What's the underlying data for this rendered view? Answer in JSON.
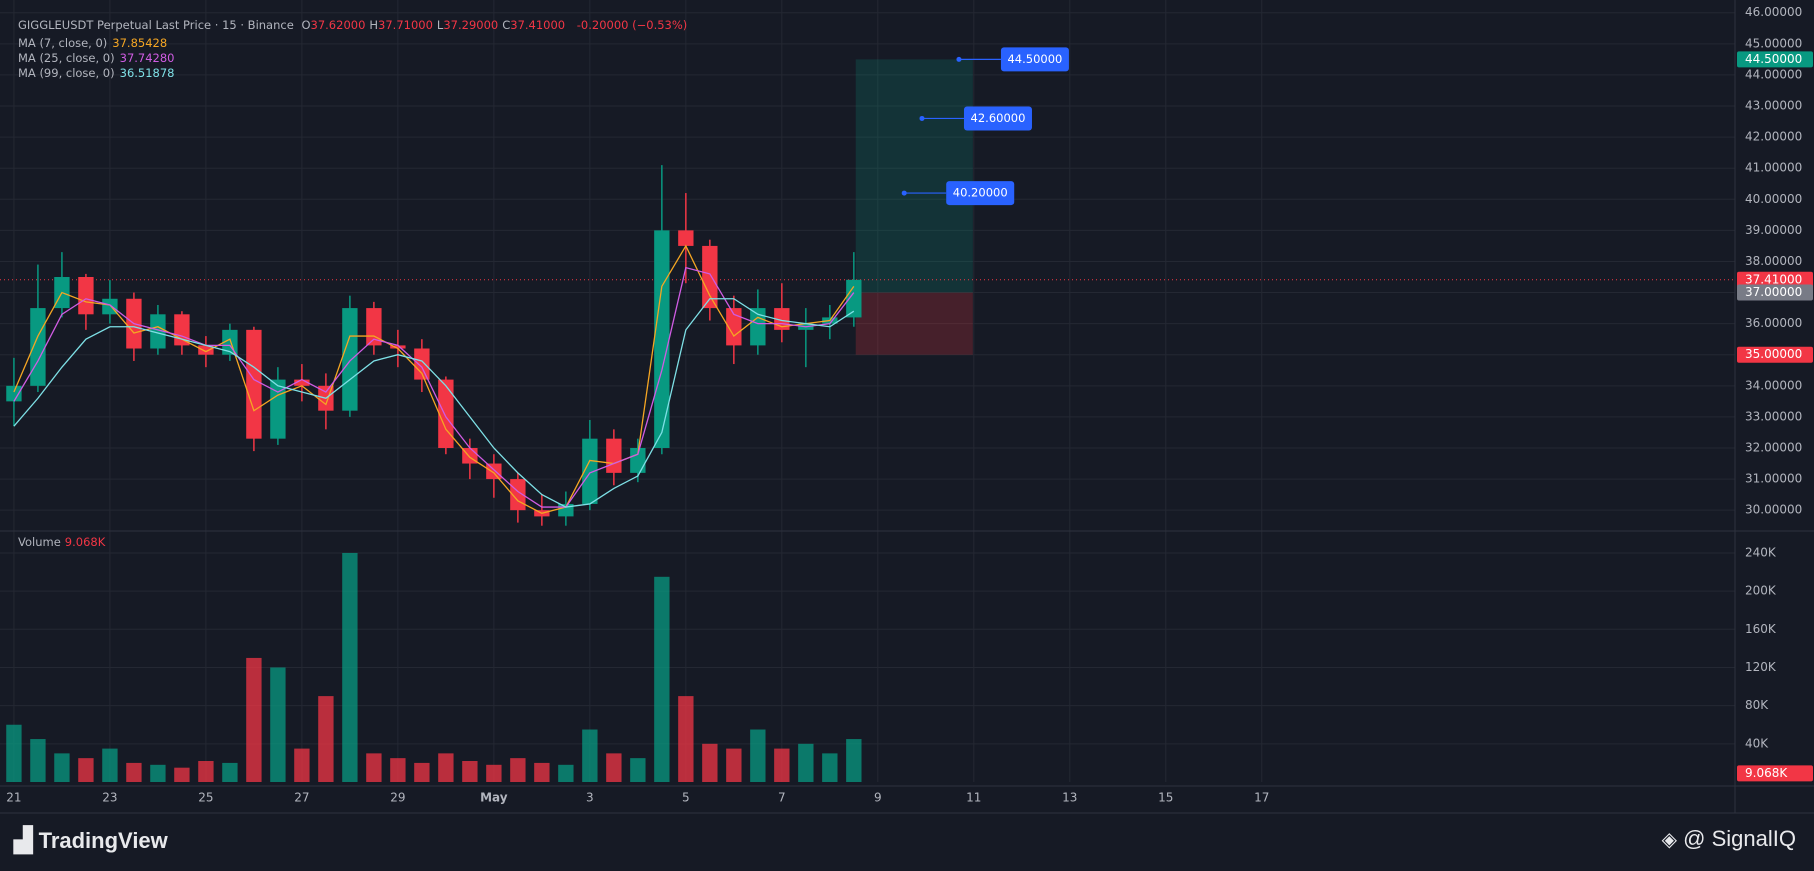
{
  "chart_data": {
    "type": "candlestick",
    "title": "GIGGLEUSDT Perpetual Last Price · 15 · Binance",
    "ohlc": [
      {
        "label": "O",
        "value": "37.62000"
      },
      {
        "label": "H",
        "value": "37.71000"
      },
      {
        "label": "L",
        "value": "37.29000"
      },
      {
        "label": "C",
        "value": "37.41000"
      }
    ],
    "change": "-0.20000 (−0.53%)",
    "up_color": "#089981",
    "down_color": "#f23645",
    "x": [
      0,
      0.5,
      1,
      1.5,
      2,
      2.5,
      3,
      3.5,
      4,
      4.5,
      5,
      5.5,
      6,
      6.5,
      7,
      7.5,
      8,
      8.5,
      9,
      9.5,
      10,
      10.5,
      11,
      11.5,
      12,
      12.5,
      13,
      13.5,
      14,
      14.5,
      15,
      15.5,
      16,
      16.5,
      17,
      17.5
    ],
    "open": [
      33.5,
      34.0,
      36.5,
      37.5,
      36.3,
      36.8,
      35.2,
      36.3,
      35.3,
      35.0,
      35.8,
      32.3,
      34.2,
      34.0,
      33.2,
      36.5,
      35.3,
      35.2,
      34.2,
      32.0,
      31.5,
      31.0,
      30.0,
      29.8,
      30.2,
      32.3,
      31.2,
      32.0,
      39.0,
      38.5,
      36.5,
      35.3,
      36.5,
      35.8,
      36.0,
      36.2
    ],
    "high": [
      34.9,
      37.9,
      38.3,
      37.6,
      37.4,
      37.0,
      36.6,
      36.4,
      35.6,
      36.0,
      35.9,
      34.6,
      34.7,
      34.4,
      36.9,
      36.7,
      35.8,
      35.5,
      34.3,
      32.3,
      31.8,
      31.2,
      30.5,
      30.6,
      32.9,
      32.6,
      32.3,
      41.1,
      40.2,
      38.7,
      36.9,
      37.1,
      37.3,
      36.5,
      36.6,
      38.3
    ],
    "low": [
      32.7,
      33.8,
      36.2,
      35.8,
      36.0,
      34.8,
      35.0,
      35.0,
      34.6,
      34.8,
      31.9,
      32.1,
      33.5,
      32.6,
      33.0,
      35.0,
      34.6,
      33.8,
      31.8,
      31.0,
      30.4,
      29.6,
      29.5,
      29.5,
      30.0,
      30.8,
      30.9,
      31.8,
      37.3,
      36.1,
      34.7,
      35.0,
      35.4,
      34.6,
      35.5,
      35.9
    ],
    "close": [
      34.0,
      36.5,
      37.5,
      36.3,
      36.8,
      35.2,
      36.3,
      35.3,
      35.0,
      35.8,
      32.3,
      34.2,
      34.0,
      33.2,
      36.5,
      35.3,
      35.2,
      34.2,
      32.0,
      31.5,
      31.0,
      30.0,
      29.8,
      30.2,
      32.3,
      31.2,
      32.0,
      39.0,
      38.5,
      36.5,
      35.3,
      36.5,
      35.8,
      36.0,
      36.2,
      37.41
    ],
    "series": [
      {
        "name": "MA (7, close, 0)",
        "color": "#f5a623",
        "legend_value": "37.85428",
        "values": [
          33.8,
          35.6,
          37.0,
          36.7,
          36.6,
          35.7,
          35.9,
          35.5,
          35.1,
          35.5,
          33.2,
          33.7,
          34.0,
          33.4,
          35.6,
          35.6,
          35.2,
          34.4,
          32.6,
          31.7,
          31.2,
          30.3,
          29.9,
          30.1,
          31.6,
          31.5,
          31.8,
          37.2,
          38.5,
          36.9,
          35.6,
          36.2,
          35.9,
          36.0,
          36.1,
          37.2
        ]
      },
      {
        "name": "MA (25, close, 0)",
        "color": "#d05ce3",
        "legend_value": "37.74280",
        "values": [
          33.5,
          34.8,
          36.3,
          36.8,
          36.6,
          36.0,
          35.8,
          35.6,
          35.3,
          35.3,
          34.2,
          33.8,
          34.2,
          33.8,
          34.8,
          35.5,
          35.3,
          34.6,
          33.0,
          32.0,
          31.3,
          30.6,
          30.1,
          30.1,
          31.2,
          31.5,
          31.8,
          34.5,
          37.8,
          37.6,
          36.3,
          36.0,
          36.0,
          35.9,
          36.0,
          37.0
        ]
      },
      {
        "name": "MA (99, close, 0)",
        "color": "#7ee0e6",
        "legend_value": "36.51878",
        "values": [
          32.7,
          33.6,
          34.6,
          35.5,
          35.9,
          35.9,
          35.7,
          35.5,
          35.3,
          35.1,
          34.6,
          34.0,
          33.8,
          33.6,
          34.2,
          34.8,
          35.0,
          34.8,
          34.0,
          33.0,
          32.0,
          31.2,
          30.5,
          30.1,
          30.2,
          30.7,
          31.1,
          32.5,
          35.8,
          36.8,
          36.8,
          36.3,
          36.1,
          36.0,
          35.9,
          36.4
        ]
      }
    ],
    "xlim": [
      -0.29,
      35.86
    ],
    "xticks": [
      {
        "value": 0,
        "label": "21"
      },
      {
        "value": 2,
        "label": "23"
      },
      {
        "value": 4,
        "label": "25"
      },
      {
        "value": 6,
        "label": "27"
      },
      {
        "value": 8,
        "label": "29"
      },
      {
        "value": 10,
        "label": "May"
      },
      {
        "value": 12,
        "label": "3"
      },
      {
        "value": 14,
        "label": "5"
      },
      {
        "value": 16,
        "label": "7"
      },
      {
        "value": 18,
        "label": "9"
      },
      {
        "value": 20,
        "label": "11"
      },
      {
        "value": 22,
        "label": "13"
      },
      {
        "value": 24,
        "label": "15"
      },
      {
        "value": 26,
        "label": "17"
      }
    ],
    "ylim": [
      29.33,
      46.41
    ],
    "yticks": [
      {
        "value": 30,
        "label": "30.00000"
      },
      {
        "value": 31,
        "label": "31.00000"
      },
      {
        "value": 32,
        "label": "32.00000"
      },
      {
        "value": 33,
        "label": "33.00000"
      },
      {
        "value": 34,
        "label": "34.00000"
      },
      {
        "value": 35,
        "label": "35.00000"
      },
      {
        "value": 36,
        "label": "36.00000"
      },
      {
        "value": 37,
        "label": "37.00000"
      },
      {
        "value": 38,
        "label": "38.00000"
      },
      {
        "value": 39,
        "label": "39.00000"
      },
      {
        "value": 40,
        "label": "40.00000"
      },
      {
        "value": 41,
        "label": "41.00000"
      },
      {
        "value": 42,
        "label": "42.00000"
      },
      {
        "value": 43,
        "label": "43.00000"
      },
      {
        "value": 44,
        "label": "44.00000"
      },
      {
        "value": 45,
        "label": "45.00000"
      },
      {
        "value": 46,
        "label": "46.00000"
      }
    ],
    "grid": true,
    "last_price": 37.41,
    "price_badges": [
      {
        "value": 44.5,
        "label": "44.50000",
        "color": "#089981"
      },
      {
        "value": 37.41,
        "label": "37.41000",
        "color": "#f23645"
      },
      {
        "value": 37.0,
        "label": "37.00000",
        "color": "#787b86"
      },
      {
        "value": 35.0,
        "label": "35.00000",
        "color": "#f23645"
      }
    ],
    "position": {
      "x_range": [
        17.54,
        19.98
      ],
      "entry": 37.0,
      "stop": 35.0,
      "take_profit": 44.5,
      "targets": [
        {
          "x": 18.55,
          "value": 40.2,
          "label": "40.20000"
        },
        {
          "x": 18.92,
          "value": 42.6,
          "label": "42.60000"
        },
        {
          "x": 19.69,
          "value": 44.5,
          "label": "44.50000"
        }
      ]
    },
    "volume": {
      "name": "Volume",
      "values": [
        60000,
        45000,
        30000,
        25000,
        35000,
        20000,
        18000,
        15000,
        22000,
        20000,
        130000,
        120000,
        35000,
        90000,
        240000,
        30000,
        25000,
        20000,
        30000,
        22000,
        18000,
        25000,
        20000,
        18000,
        55000,
        30000,
        25000,
        215000,
        90000,
        40000,
        35000,
        55000,
        35000,
        40000,
        30000,
        45000
      ],
      "ylim": [
        0,
        263000
      ],
      "yticks": [
        {
          "value": 40000,
          "label": "40K"
        },
        {
          "value": 80000,
          "label": "80K"
        },
        {
          "value": 120000,
          "label": "120K"
        },
        {
          "value": 160000,
          "label": "160K"
        },
        {
          "value": 200000,
          "label": "200K"
        },
        {
          "value": 240000,
          "label": "240K"
        }
      ],
      "badge": {
        "value": 9068,
        "label": "9.068K"
      }
    },
    "footer": {
      "left": "TradingView",
      "right": "@ SignalIQ"
    }
  }
}
